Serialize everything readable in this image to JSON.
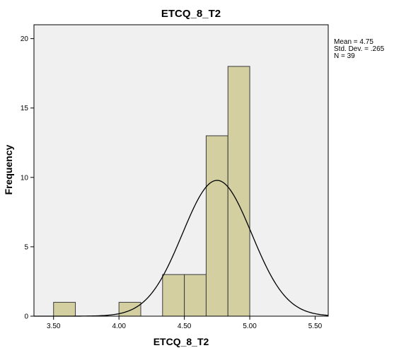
{
  "chart_data": {
    "type": "bar",
    "subtype": "histogram",
    "title": "ETCQ_8_T2",
    "xlabel": "ETCQ_8_T2",
    "ylabel": "Frequency",
    "xlim": [
      3.35,
      5.6
    ],
    "ylim": [
      0,
      21
    ],
    "x_ticks": [
      3.5,
      4.0,
      4.5,
      5.0,
      5.5
    ],
    "x_tick_labels": [
      "3.50",
      "4.00",
      "4.50",
      "5.00",
      "5.50"
    ],
    "y_ticks": [
      0,
      5,
      10,
      15,
      20
    ],
    "y_tick_labels": [
      "0",
      "5",
      "10",
      "15",
      "20"
    ],
    "bin_width": 0.1667,
    "bins": [
      {
        "start": 3.5,
        "end": 3.6667,
        "count": 1
      },
      {
        "start": 3.6667,
        "end": 3.8333,
        "count": 0
      },
      {
        "start": 3.8333,
        "end": 4.0,
        "count": 0
      },
      {
        "start": 4.0,
        "end": 4.1667,
        "count": 1
      },
      {
        "start": 4.1667,
        "end": 4.3333,
        "count": 0
      },
      {
        "start": 4.3333,
        "end": 4.5,
        "count": 3
      },
      {
        "start": 4.5,
        "end": 4.6667,
        "count": 3
      },
      {
        "start": 4.6667,
        "end": 4.8333,
        "count": 13
      },
      {
        "start": 4.8333,
        "end": 5.0,
        "count": 18
      }
    ],
    "normal_curve": {
      "mean": 4.75,
      "sd": 0.265,
      "n": 39
    },
    "stats": [
      "Mean = 4.75",
      "Std. Dev. = .265",
      "N = 39"
    ],
    "grid": false,
    "colors": {
      "bar_fill": "#d3cfa0",
      "bar_stroke": "#3a3a3a",
      "plot_bg": "#f0f0f0",
      "curve": "#000000"
    }
  }
}
